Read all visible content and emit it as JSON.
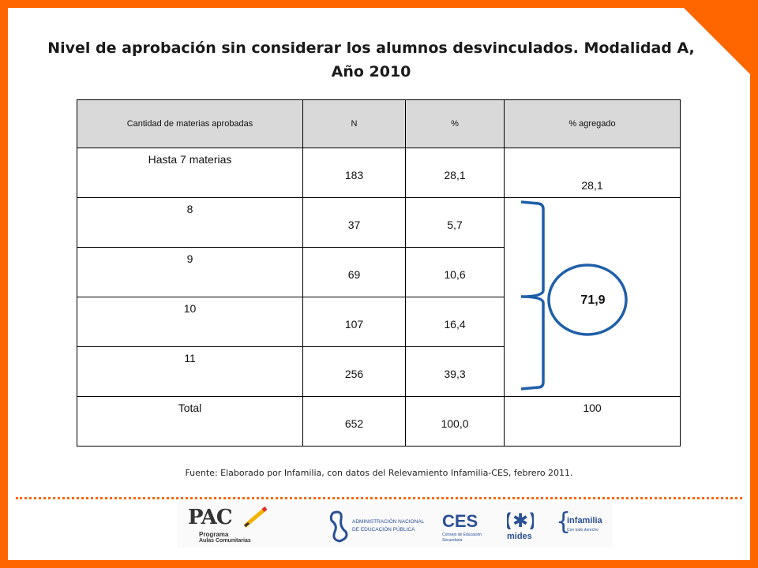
{
  "title": "Nivel de aprobación sin considerar los alumnos desvinculados. Modalidad A, Año 2010",
  "table": {
    "headers": [
      "Cantidad de materias aprobadas",
      "N",
      "%",
      "% agregado"
    ],
    "rows": [
      {
        "label": "Hasta 7 materias",
        "n": "183",
        "pct": "28,1"
      },
      {
        "label": "8",
        "n": "37",
        "pct": "5,7"
      },
      {
        "label": "9",
        "n": "69",
        "pct": "10,6"
      },
      {
        "label": "10",
        "n": "107",
        "pct": "16,4"
      },
      {
        "label": "11",
        "n": "256",
        "pct": "39,3"
      },
      {
        "label": "Total",
        "n": "652",
        "pct": "100,0"
      }
    ],
    "aggregated": {
      "first": "28,1",
      "group": "71,9",
      "total": "100"
    }
  },
  "source": "Fuente: Elaborado por Infamilia, con datos del Relevamiento Infamilia-CES, febrero 2011.",
  "logos": {
    "pac": {
      "name": "PAC",
      "line1": "Programa",
      "line2": "Aulas Comunitarias"
    },
    "anep": {
      "line1": "ADMINISTRACIÓN NACIONAL",
      "line2": "DE EDUCACIÓN PÚBLICA"
    },
    "ces": {
      "name": "CES",
      "line1": "Consejo de Educación",
      "line2": "Secundaria"
    },
    "mides": {
      "name": "mides"
    },
    "infamilia": {
      "name": "infamilia",
      "tagline": "Con todo derecho"
    }
  },
  "colors": {
    "frame": "#ff6600",
    "accent": "#1f5fa8",
    "header_bg": "#d9d9d9"
  }
}
